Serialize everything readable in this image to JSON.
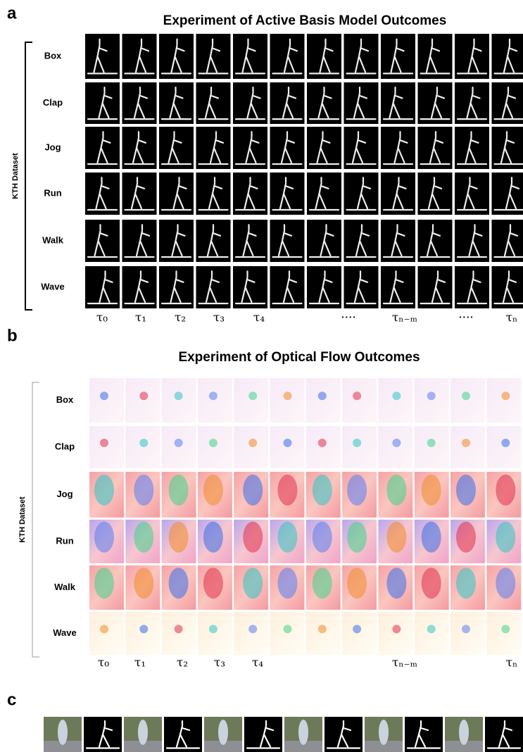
{
  "panels": [
    {
      "letter": "a",
      "title": "Experiment of Active Basis Model Outcomes",
      "axis_label": "KTH Dataset",
      "rows": [
        "Box",
        "Clap",
        "Jog",
        "Run",
        "Walk",
        "Wave"
      ],
      "time_labels": [
        "τ₀",
        "τ₁",
        "τ₂",
        "τ₃",
        "τ₄",
        "····",
        "τₙ₋ₘ",
        "····",
        "τₙ"
      ]
    },
    {
      "letter": "b",
      "title": "Experiment of Optical Flow Outcomes",
      "axis_label": "KTH Dataset",
      "rows": [
        "Box",
        "Clap",
        "Jog",
        "Run",
        "Walk",
        "Wave"
      ],
      "time_labels": [
        "τ₀",
        "τ₁",
        "τ₂",
        "τ₃",
        "τ₄",
        "τₙ₋ₘ",
        "τₙ"
      ]
    },
    {
      "letter": "c"
    }
  ]
}
